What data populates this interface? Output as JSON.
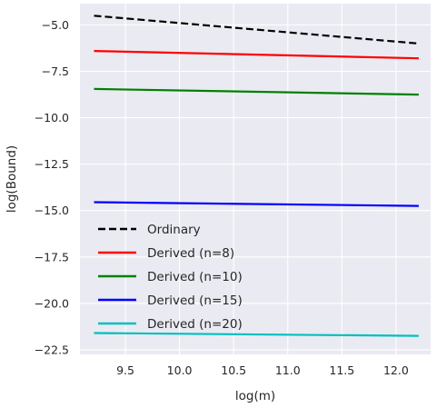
{
  "chart_data": {
    "type": "line",
    "title": "",
    "xlabel": "log(m)",
    "ylabel": "log(Bound)",
    "xlim": [
      9.08,
      12.32
    ],
    "ylim": [
      -22.75,
      -3.85
    ],
    "xticks": [
      9.5,
      10.0,
      10.5,
      11.0,
      11.5,
      12.0
    ],
    "xtick_labels": [
      "9.5",
      "10.0",
      "10.5",
      "11.0",
      "11.5",
      "12.0"
    ],
    "yticks": [
      -5.0,
      -7.5,
      -10.0,
      -12.5,
      -15.0,
      -17.5,
      -20.0,
      -22.5
    ],
    "ytick_labels": [
      "−5.0",
      "−7.5",
      "−10.0",
      "−12.5",
      "−15.0",
      "−17.5",
      "−20.0",
      "−22.5"
    ],
    "grid": true,
    "legend_position": "bottom-left",
    "background": "#eaeaf2",
    "series": [
      {
        "name": "Ordinary",
        "color": "#000000",
        "dash": "dashed",
        "x": [
          9.21,
          12.21
        ],
        "y": [
          -4.5,
          -6.0
        ]
      },
      {
        "name": "Derived (n=8)",
        "color": "#ff0000",
        "dash": "solid",
        "x": [
          9.21,
          12.21
        ],
        "y": [
          -6.4,
          -6.8
        ]
      },
      {
        "name": "Derived (n=10)",
        "color": "#008000",
        "dash": "solid",
        "x": [
          9.21,
          12.21
        ],
        "y": [
          -8.45,
          -8.75
        ]
      },
      {
        "name": "Derived (n=15)",
        "color": "#0000ff",
        "dash": "solid",
        "x": [
          9.21,
          12.21
        ],
        "y": [
          -14.55,
          -14.75
        ]
      },
      {
        "name": "Derived (n=20)",
        "color": "#00bfbf",
        "dash": "solid",
        "x": [
          9.21,
          12.21
        ],
        "y": [
          -21.6,
          -21.75
        ]
      }
    ]
  }
}
